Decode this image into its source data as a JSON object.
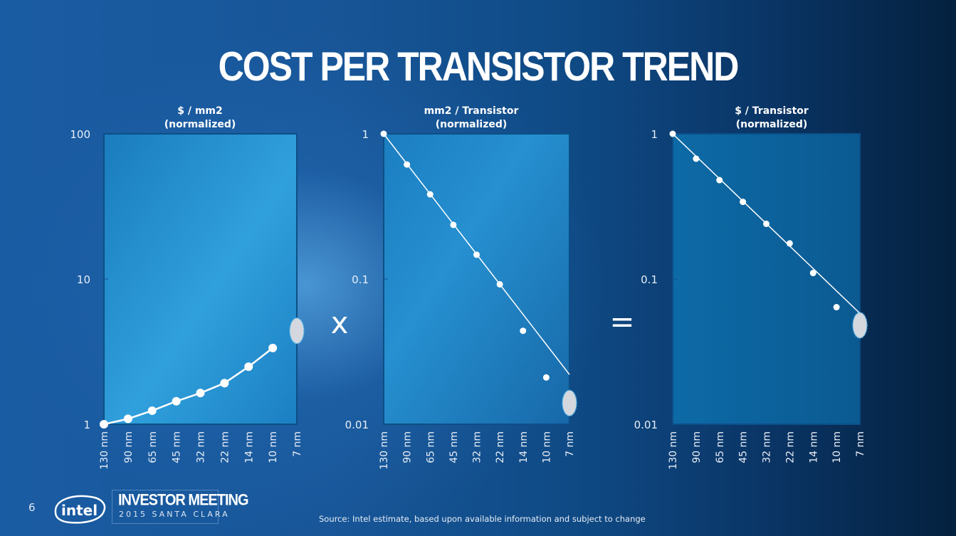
{
  "slide": {
    "title": "COST PER TRANSISTOR TREND",
    "page_number": "6",
    "brand": "intel",
    "event_title": "INVESTOR MEETING",
    "event_subtitle": "2015 SANTA CLARA",
    "source_note": "Source: Intel estimate, based upon available information and subject to change",
    "operator_multiply": "x",
    "operator_equals": "=",
    "colors": {
      "plot_fill_1": "#2a8fcf",
      "plot_fill_2": "#1f7fc0",
      "plot_fill_3": "#0f5e96",
      "marker": "#ffffff",
      "estimate_fill": "#d4d8de",
      "estimate_border": "#4fb3ea"
    }
  },
  "chart_data": [
    {
      "type": "line",
      "title": "$ / mm2",
      "subtitle": "(normalized)",
      "xlabel": "",
      "ylabel": "",
      "yscale": "log",
      "ylim": [
        1,
        100
      ],
      "yticks": [
        1,
        10,
        100
      ],
      "ytick_labels": [
        "1",
        "10",
        "100"
      ],
      "categories": [
        "130 nm",
        "90 nm",
        "65 nm",
        "45 nm",
        "32 nm",
        "22 nm",
        "14 nm",
        "10 nm",
        "7 nm"
      ],
      "series": [
        {
          "name": "actual",
          "values": [
            1.0,
            1.09,
            1.24,
            1.44,
            1.64,
            1.92,
            2.49,
            3.35,
            null
          ],
          "connected": true
        }
      ],
      "estimate": {
        "category": "7 nm",
        "value": 4.4
      },
      "trendline": null,
      "grid": false,
      "legend": "none"
    },
    {
      "type": "line",
      "title": "mm2 / Transistor",
      "subtitle": "(normalized)",
      "xlabel": "",
      "ylabel": "",
      "yscale": "log",
      "ylim": [
        0.01,
        1
      ],
      "yticks": [
        0.01,
        0.1,
        1
      ],
      "ytick_labels": [
        "0.01",
        "0.1",
        "1"
      ],
      "categories": [
        "130 nm",
        "90 nm",
        "65 nm",
        "45 nm",
        "32 nm",
        "22 nm",
        "14 nm",
        "10 nm",
        "7 nm"
      ],
      "series": [
        {
          "name": "actual",
          "values": [
            1.0,
            0.615,
            0.383,
            0.236,
            0.147,
            0.092,
            0.044,
            0.021,
            null
          ],
          "connected": false
        }
      ],
      "estimate": {
        "category": "7 nm",
        "value": 0.014
      },
      "trendline": {
        "from": {
          "category": "130 nm",
          "value": 1.0
        },
        "to": {
          "category": "7 nm",
          "value": 0.022
        }
      },
      "grid": false,
      "legend": "none"
    },
    {
      "type": "line",
      "title": "$ / Transistor",
      "subtitle": "(normalized)",
      "xlabel": "",
      "ylabel": "",
      "yscale": "log",
      "ylim": [
        0.01,
        1
      ],
      "yticks": [
        0.01,
        0.1,
        1
      ],
      "ytick_labels": [
        "0.01",
        "0.1",
        "1"
      ],
      "categories": [
        "130 nm",
        "90 nm",
        "65 nm",
        "45 nm",
        "32 nm",
        "22 nm",
        "14 nm",
        "10 nm",
        "7 nm"
      ],
      "series": [
        {
          "name": "actual",
          "values": [
            1.0,
            0.674,
            0.48,
            0.34,
            0.24,
            0.176,
            0.11,
            0.064,
            null
          ],
          "connected": false
        }
      ],
      "estimate": {
        "category": "7 nm",
        "value": 0.048
      },
      "trendline": {
        "from": {
          "category": "130 nm",
          "value": 1.0
        },
        "to": {
          "category": "7 nm",
          "value": 0.058
        }
      },
      "grid": false,
      "legend": "none"
    }
  ]
}
